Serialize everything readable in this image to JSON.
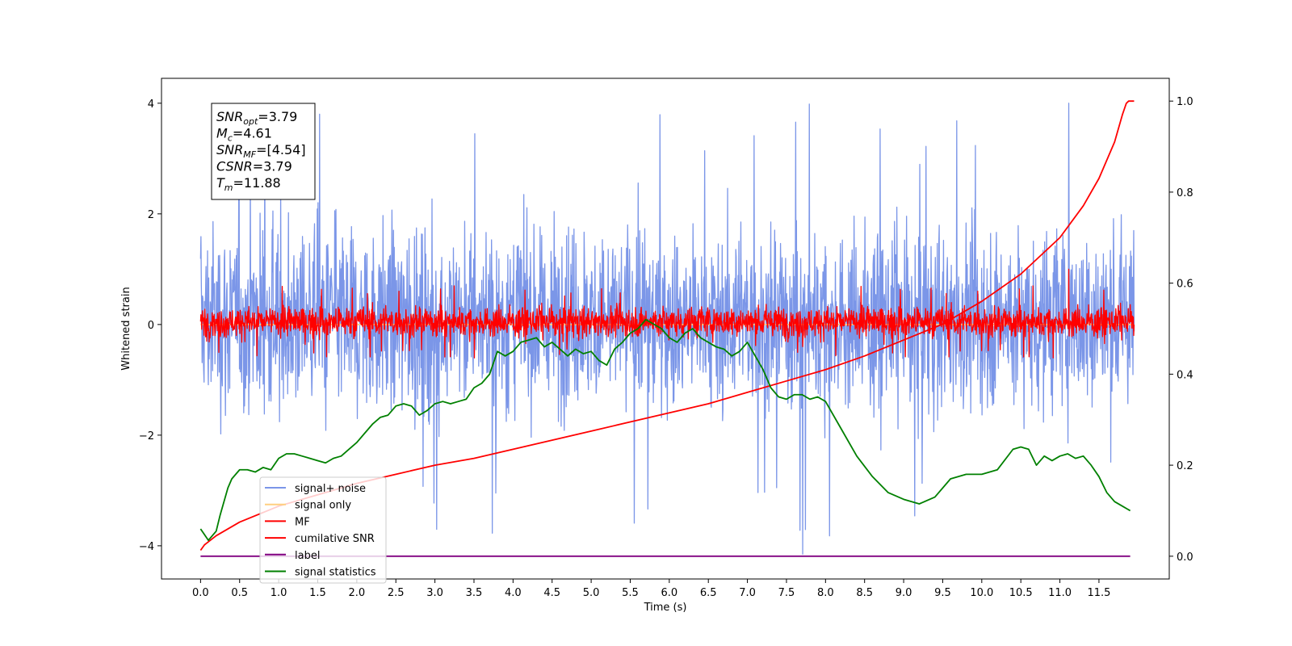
{
  "chart_data": {
    "type": "line",
    "xlabel": "Time (s)",
    "ylabel_left": "Whitened strain",
    "ylabel_right": "",
    "xlim": [
      -0.5,
      12.4
    ],
    "ylim_left": [
      -4.6,
      4.45
    ],
    "ylim_right": [
      -0.05,
      1.05
    ],
    "x_ticks": [
      0.0,
      0.5,
      1.0,
      1.5,
      2.0,
      2.5,
      3.0,
      3.5,
      4.0,
      4.5,
      5.0,
      5.5,
      6.0,
      6.5,
      7.0,
      7.5,
      8.0,
      8.5,
      9.0,
      9.5,
      10.0,
      10.5,
      11.0,
      11.5
    ],
    "x_tick_labels": [
      "0.0",
      "0.5",
      "1.0",
      "1.5",
      "2.0",
      "2.5",
      "3.0",
      "3.5",
      "4.0",
      "4.5",
      "5.0",
      "5.5",
      "6.0",
      "6.5",
      "7.0",
      "7.5",
      "8.0",
      "8.5",
      "9.0",
      "9.5",
      "10.0",
      "10.5",
      "11.0",
      "11.5"
    ],
    "y_left_ticks": [
      -4,
      -2,
      0,
      2,
      4
    ],
    "y_left_tick_labels": [
      "−4",
      "−2",
      "0",
      "2",
      "4"
    ],
    "y_right_ticks": [
      0.0,
      0.2,
      0.4,
      0.6,
      0.8,
      1.0
    ],
    "y_right_tick_labels": [
      "0.0",
      "0.2",
      "0.4",
      "0.6",
      "0.8",
      "1.0"
    ],
    "grid": false,
    "legend_position": "lower-left",
    "annotation": {
      "lines": [
        {
          "base": "SNR",
          "sub": "opt",
          "rest": "=3.79"
        },
        {
          "base": "M",
          "sub": "c",
          "rest": "=4.61"
        },
        {
          "base": "SNR",
          "sub": "MF",
          "rest": "=[4.54]"
        },
        {
          "base": "CSNR",
          "sub": "",
          "rest": "=3.79"
        },
        {
          "base": "T",
          "sub": "m",
          "rest": "=11.88"
        }
      ]
    },
    "series": [
      {
        "name": "signal+ noise",
        "color": "#7b96e8",
        "axis": "left",
        "style": "noise",
        "x_range": [
          0.0,
          11.95
        ],
        "envelope": [
          -2.0,
          2.2
        ],
        "spike_max": 4.0,
        "spike_min": -4.15
      },
      {
        "name": "signal only",
        "color": "#ffcf80",
        "axis": "left",
        "x": [
          0.0,
          11.95
        ],
        "y": [
          0.0,
          0.0
        ]
      },
      {
        "name": "MF",
        "color": "#ff0000",
        "axis": "left",
        "style": "noise",
        "x_range": [
          0.0,
          11.95
        ],
        "envelope": [
          -0.3,
          0.4
        ],
        "spike_max": 1.0,
        "spike_min": -0.4
      },
      {
        "name": "cumilative SNR",
        "color": "#ff0000",
        "axis": "right",
        "x": [
          0.0,
          0.05,
          0.2,
          0.5,
          1.0,
          1.5,
          2.0,
          2.5,
          3.0,
          3.5,
          4.0,
          4.5,
          5.0,
          5.5,
          6.0,
          6.5,
          7.0,
          7.5,
          8.0,
          8.5,
          9.0,
          9.5,
          10.0,
          10.5,
          11.0,
          11.3,
          11.5,
          11.7,
          11.8,
          11.85,
          11.88,
          11.95
        ],
        "y": [
          0.013,
          0.025,
          0.045,
          0.075,
          0.11,
          0.135,
          0.16,
          0.18,
          0.2,
          0.215,
          0.235,
          0.255,
          0.275,
          0.295,
          0.315,
          0.335,
          0.36,
          0.385,
          0.41,
          0.44,
          0.475,
          0.51,
          0.56,
          0.62,
          0.7,
          0.77,
          0.83,
          0.91,
          0.97,
          0.995,
          1.0,
          1.0
        ]
      },
      {
        "name": "label",
        "color": "#800080",
        "axis": "right",
        "x": [
          0.0,
          11.9
        ],
        "y": [
          0.0,
          0.0
        ]
      },
      {
        "name": "signal statistics",
        "color": "#008000",
        "axis": "right",
        "x": [
          0.0,
          0.1,
          0.2,
          0.25,
          0.35,
          0.4,
          0.5,
          0.6,
          0.7,
          0.8,
          0.9,
          1.0,
          1.1,
          1.2,
          1.3,
          1.4,
          1.5,
          1.6,
          1.7,
          1.8,
          1.9,
          2.0,
          2.1,
          2.2,
          2.3,
          2.4,
          2.5,
          2.6,
          2.7,
          2.8,
          2.9,
          3.0,
          3.1,
          3.2,
          3.3,
          3.4,
          3.5,
          3.6,
          3.7,
          3.8,
          3.9,
          4.0,
          4.1,
          4.2,
          4.3,
          4.4,
          4.5,
          4.6,
          4.7,
          4.8,
          4.9,
          5.0,
          5.1,
          5.2,
          5.3,
          5.4,
          5.5,
          5.6,
          5.7,
          5.8,
          5.9,
          6.0,
          6.1,
          6.2,
          6.3,
          6.4,
          6.5,
          6.6,
          6.7,
          6.8,
          6.9,
          7.0,
          7.1,
          7.2,
          7.3,
          7.4,
          7.5,
          7.6,
          7.7,
          7.8,
          7.9,
          8.0,
          8.2,
          8.4,
          8.6,
          8.8,
          9.0,
          9.2,
          9.4,
          9.6,
          9.8,
          10.0,
          10.2,
          10.4,
          10.5,
          10.6,
          10.7,
          10.8,
          10.9,
          11.0,
          11.1,
          11.2,
          11.3,
          11.4,
          11.5,
          11.6,
          11.7,
          11.8,
          11.9
        ],
        "y": [
          0.06,
          0.035,
          0.055,
          0.09,
          0.15,
          0.17,
          0.19,
          0.19,
          0.185,
          0.195,
          0.19,
          0.215,
          0.225,
          0.225,
          0.22,
          0.215,
          0.21,
          0.205,
          0.215,
          0.22,
          0.235,
          0.25,
          0.27,
          0.29,
          0.305,
          0.31,
          0.33,
          0.335,
          0.33,
          0.31,
          0.32,
          0.335,
          0.34,
          0.335,
          0.34,
          0.345,
          0.37,
          0.38,
          0.4,
          0.45,
          0.44,
          0.45,
          0.47,
          0.475,
          0.48,
          0.46,
          0.47,
          0.455,
          0.44,
          0.455,
          0.445,
          0.45,
          0.43,
          0.42,
          0.455,
          0.47,
          0.49,
          0.5,
          0.52,
          0.51,
          0.5,
          0.48,
          0.47,
          0.49,
          0.5,
          0.48,
          0.47,
          0.46,
          0.455,
          0.44,
          0.45,
          0.47,
          0.44,
          0.41,
          0.37,
          0.35,
          0.345,
          0.355,
          0.355,
          0.345,
          0.35,
          0.34,
          0.28,
          0.22,
          0.175,
          0.14,
          0.125,
          0.115,
          0.13,
          0.17,
          0.18,
          0.18,
          0.19,
          0.235,
          0.24,
          0.235,
          0.2,
          0.22,
          0.21,
          0.22,
          0.225,
          0.215,
          0.22,
          0.2,
          0.175,
          0.14,
          0.12,
          0.11,
          0.1
        ]
      }
    ]
  }
}
